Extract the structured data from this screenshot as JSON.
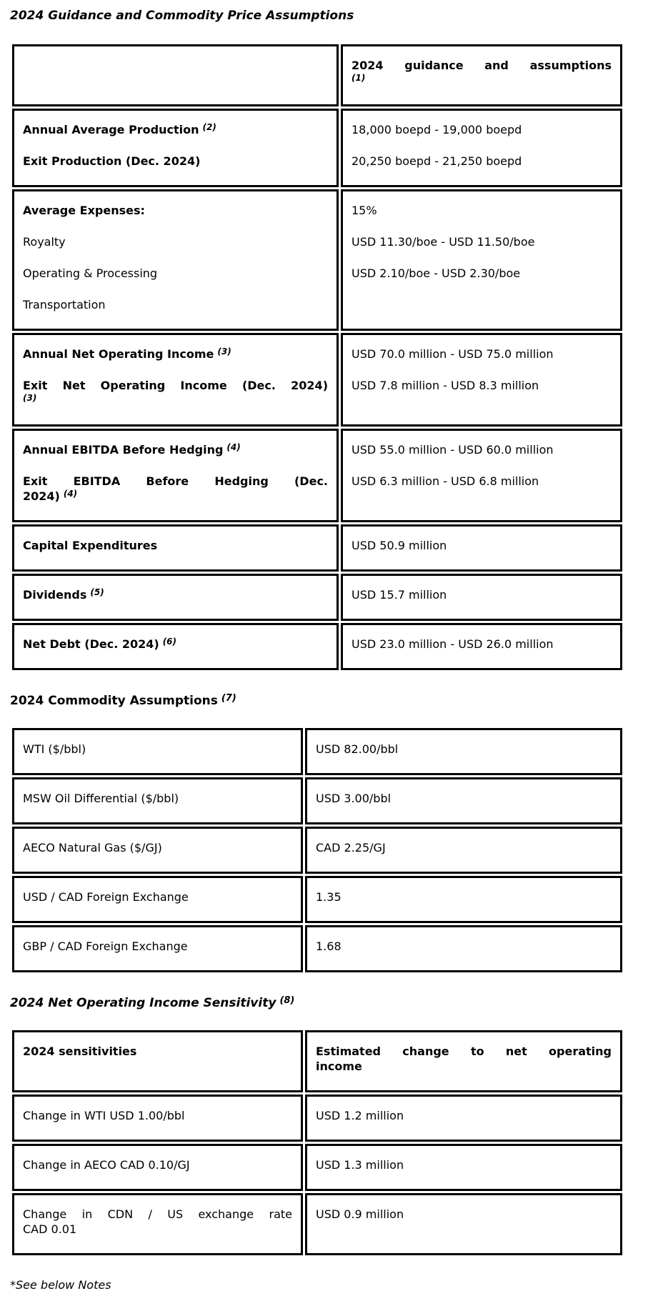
{
  "document": {
    "title": "2024 Guidance and Commodity Price Assumptions",
    "footnote": "*See below Notes"
  },
  "guidance_table": {
    "header": {
      "label": "",
      "value_text": "2024 guidance and assumptions",
      "value_sup": "(1)"
    },
    "production_row": {
      "label1": "Annual Average Production",
      "label1_sup": "(2)",
      "label2": "Exit Production (Dec. 2024)",
      "value1": "18,000 boepd - 19,000 boepd",
      "value2": "20,250 boepd - 21,250 boepd"
    },
    "expenses_row": {
      "label_heading": "Average Expenses:",
      "label_item1": "Royalty",
      "label_item2": "Operating & Processing",
      "label_item3": "Transportation",
      "value1": "15%",
      "value2": "USD 11.30/boe - USD 11.50/boe",
      "value3": "USD 2.10/boe - USD 2.30/boe"
    },
    "net_operating_income_row": {
      "label1": "Annual Net Operating Income",
      "label1_sup": "(3)",
      "label2_line1": "Exit Net Operating Income (Dec. 2024)",
      "label2_sup": "(3)",
      "value1": "USD 70.0 million - USD 75.0 million",
      "value2": "USD 7.8 million - USD 8.3 million"
    },
    "ebitda_row": {
      "label1": "Annual EBITDA Before Hedging",
      "label1_sup": "(4)",
      "label2_line1": "Exit EBITDA Before Hedging (Dec.",
      "label2_line2": "2024)",
      "label2_sup": "(4)",
      "value1": "USD 55.0 million - USD 60.0 million",
      "value2": "USD 6.3 million - USD 6.8 million"
    },
    "capex_row": {
      "label": "Capital Expenditures",
      "value": "USD 50.9 million"
    },
    "dividends_row": {
      "label": "Dividends",
      "label_sup": "(5)",
      "value": "USD 15.7 million"
    },
    "net_debt_row": {
      "label": "Net Debt (Dec. 2024)",
      "label_sup": "(6)",
      "value": "USD 23.0 million - USD 26.0 million"
    }
  },
  "commodity_section": {
    "heading": "2024 Commodity Assumptions",
    "heading_sup": "(7)",
    "wti_row": {
      "label": "WTI ($/bbl)",
      "value": "USD 82.00/bbl"
    },
    "msw_row": {
      "label": "MSW Oil Differential ($/bbl)",
      "value": "USD 3.00/bbl"
    },
    "aeco_row": {
      "label": "AECO Natural Gas ($/GJ)",
      "value": "CAD 2.25/GJ"
    },
    "usdcad_row": {
      "label": "USD / CAD Foreign Exchange",
      "value": "1.35"
    },
    "gbpcad_row": {
      "label": "GBP / CAD Foreign Exchange",
      "value": "1.68"
    }
  },
  "sensitivity_section": {
    "heading": "2024 Net Operating Income Sensitivity",
    "heading_sup": "(8)",
    "header": {
      "col1": "2024 sensitivities",
      "col2_line1": "Estimated change to net operating",
      "col2_line2": "income"
    },
    "wti_row": {
      "label": "Change in WTI USD 1.00/bbl",
      "value": "USD 1.2 million"
    },
    "aeco_row": {
      "label": "Change in AECO CAD 0.10/GJ",
      "value": "USD 1.3 million"
    },
    "fx_row": {
      "label_line1": "Change in CDN / US exchange rate",
      "label_line2": "CAD 0.01",
      "value": "USD 0.9 million"
    }
  }
}
